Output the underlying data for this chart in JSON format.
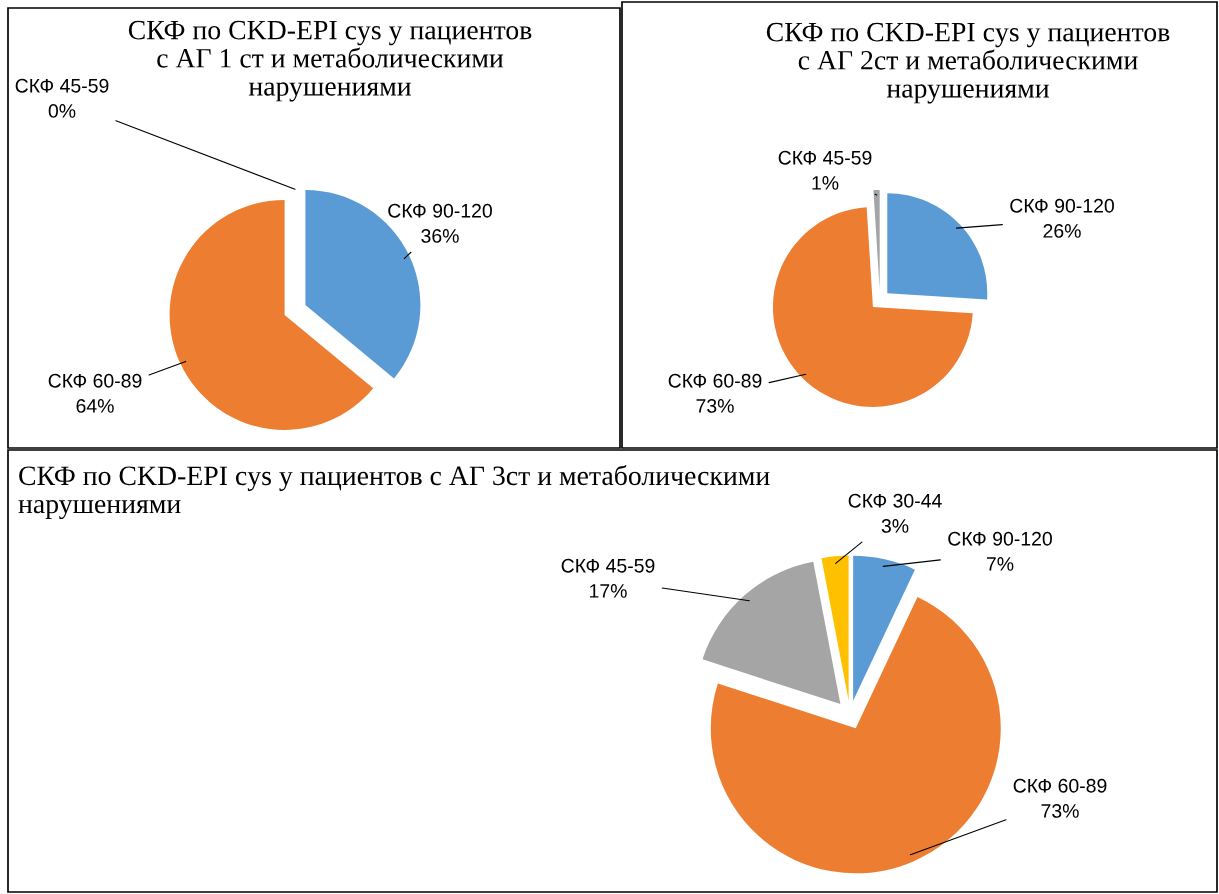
{
  "chart_data": [
    {
      "type": "pie",
      "title": "СКФ по CKD-EPI cys у пациентов с АГ 1 ст и метаболическими нарушениями",
      "categories": [
        "СКФ 90-120",
        "СКФ 60-89",
        "СКФ 45-59"
      ],
      "values": [
        36,
        64,
        0
      ],
      "value_labels": [
        "36%",
        "64%",
        "0%"
      ],
      "colors": [
        "#5b9bd5",
        "#ed7d31",
        "#a5a5a5"
      ]
    },
    {
      "type": "pie",
      "title": "СКФ по CKD-EPI cys у пациентов с АГ 2ст и метаболическими нарушениями",
      "categories": [
        "СКФ 90-120",
        "СКФ 60-89",
        "СКФ 45-59"
      ],
      "values": [
        26,
        73,
        1
      ],
      "value_labels": [
        "26%",
        "73%",
        "1%"
      ],
      "colors": [
        "#5b9bd5",
        "#ed7d31",
        "#a5a5a5"
      ]
    },
    {
      "type": "pie",
      "title": "СКФ по CKD-EPI cys у пациентов с АГ 3ст и метаболическими нарушениями",
      "categories": [
        "СКФ 90-120",
        "СКФ 60-89",
        "СКФ 45-59",
        "СКФ 30-44"
      ],
      "values": [
        7,
        73,
        17,
        3
      ],
      "value_labels": [
        "7%",
        "73%",
        "17%",
        "3%"
      ],
      "colors": [
        "#5b9bd5",
        "#ed7d31",
        "#a5a5a5",
        "#ffc000"
      ]
    }
  ]
}
